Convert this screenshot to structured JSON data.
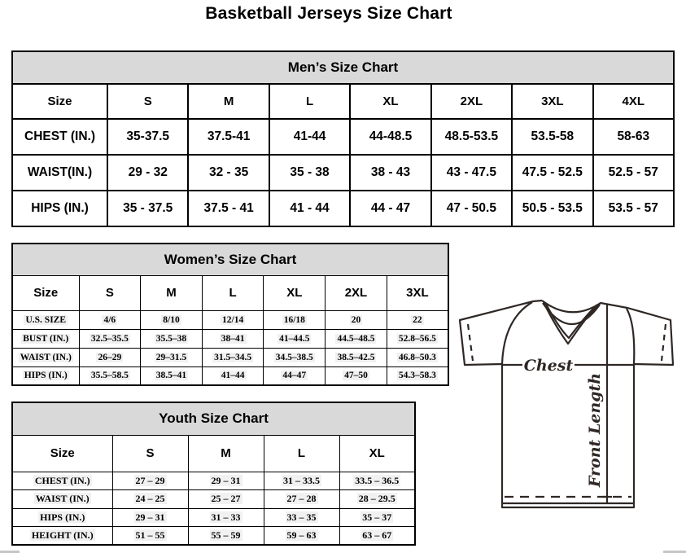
{
  "page": {
    "title": "Basketball Jerseys Size Chart"
  },
  "tables": {
    "mens": {
      "title": "Men’s Size Chart",
      "columns": [
        "Size",
        "S",
        "M",
        "L",
        "XL",
        "2XL",
        "3XL",
        "4XL"
      ],
      "rows": [
        {
          "label": "CHEST (IN.)",
          "values": [
            "35-37.5",
            "37.5-41",
            "41-44",
            "44-48.5",
            "48.5-53.5",
            "53.5-58",
            "58-63"
          ]
        },
        {
          "label": "WAIST(IN.)",
          "values": [
            "29 - 32",
            "32 - 35",
            "35 - 38",
            "38 - 43",
            "43 - 47.5",
            "47.5 - 52.5",
            "52.5 - 57"
          ]
        },
        {
          "label": "HIPS (IN.)",
          "values": [
            "35 - 37.5",
            "37.5 - 41",
            "41 - 44",
            "44 - 47",
            "47 - 50.5",
            "50.5 - 53.5",
            "53.5 - 57"
          ]
        }
      ]
    },
    "womens": {
      "title": "Women’s Size Chart",
      "columns": [
        "Size",
        "S",
        "M",
        "L",
        "XL",
        "2XL",
        "3XL"
      ],
      "rows": [
        {
          "label": "U.S. SIZE",
          "values": [
            "4/6",
            "8/10",
            "12/14",
            "16/18",
            "20",
            "22"
          ]
        },
        {
          "label": "BUST (IN.)",
          "values": [
            "32.5–35.5",
            "35.5–38",
            "38–41",
            "41–44.5",
            "44.5–48.5",
            "52.8–56.5"
          ]
        },
        {
          "label": "WAIST (IN.)",
          "values": [
            "26–29",
            "29–31.5",
            "31.5–34.5",
            "34.5–38.5",
            "38.5–42.5",
            "46.8–50.3"
          ]
        },
        {
          "label": "HIPS (IN.)",
          "values": [
            "35.5–58.5",
            "38.5–41",
            "41–44",
            "44–47",
            "47–50",
            "54.3–58.3"
          ]
        }
      ]
    },
    "youth": {
      "title": "Youth Size Chart",
      "columns": [
        "Size",
        "S",
        "M",
        "L",
        "XL"
      ],
      "rows": [
        {
          "label": "CHEST (IN.)",
          "values": [
            "27 – 29",
            "29 – 31",
            "31 – 33.5",
            "33.5 – 36.5"
          ]
        },
        {
          "label": "WAIST (IN.)",
          "values": [
            "24 – 25",
            "25 – 27",
            "27 – 28",
            "28 – 29.5"
          ]
        },
        {
          "label": "HIPS (IN.)",
          "values": [
            "29 – 31",
            "31 – 33",
            "33 – 35",
            "35 – 37"
          ]
        },
        {
          "label": "HEIGHT (IN.)",
          "values": [
            "51 – 55",
            "55 – 59",
            "59 – 63",
            "63 – 67"
          ]
        }
      ]
    }
  },
  "diagram": {
    "chest_label": "Chest",
    "front_length_label": "Front Length",
    "line_color": "#2e2724"
  },
  "colors": {
    "table_header_bg": "#d9d9d9",
    "table_border": "#000000",
    "scrollbar": "#c6c6c6"
  }
}
